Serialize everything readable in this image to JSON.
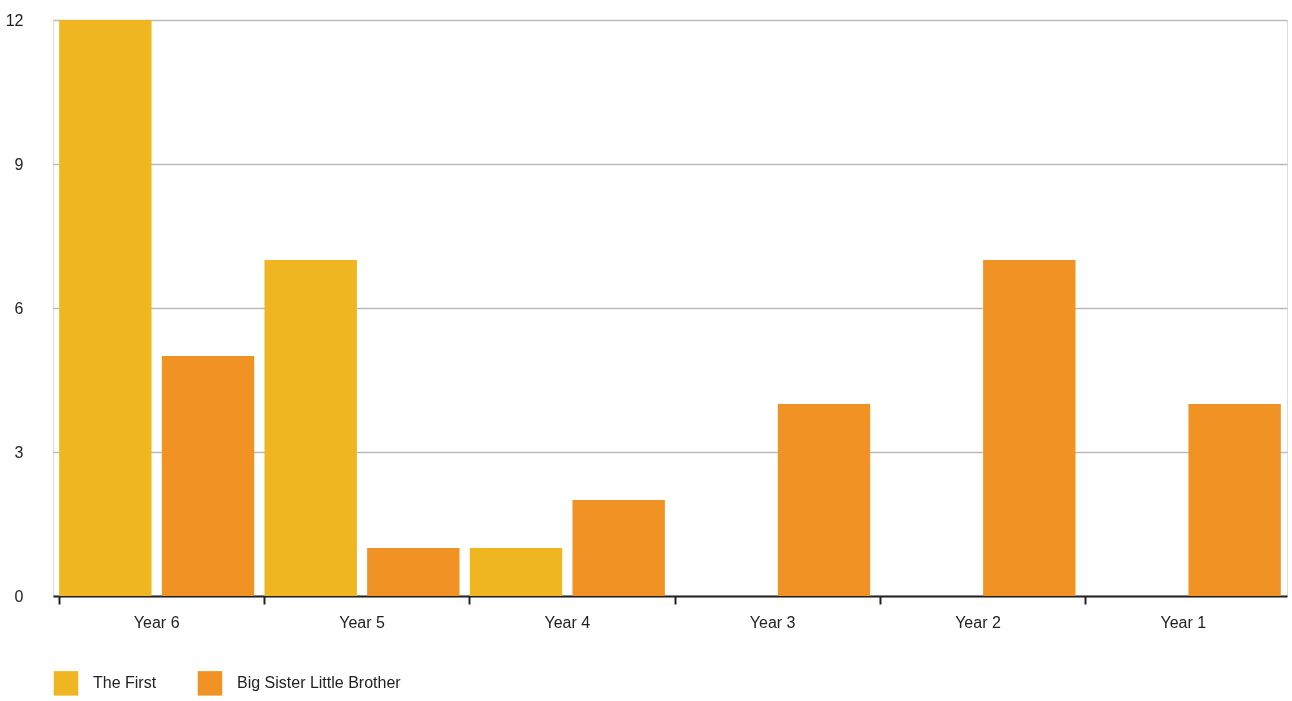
{
  "chart_data": {
    "type": "bar",
    "categories": [
      "Year 6",
      "Year 5",
      "Year 4",
      "Year 3",
      "Year 2",
      "Year 1"
    ],
    "series": [
      {
        "name": "The First",
        "color": "#f0b622",
        "values": [
          12,
          7,
          1,
          null,
          null,
          null
        ]
      },
      {
        "name": "Big Sister Little Brother",
        "color": "#f09324",
        "values": [
          5,
          1,
          2,
          4,
          7,
          4
        ]
      }
    ],
    "ylim": [
      0,
      12
    ],
    "yticks": [
      0,
      3,
      6,
      9,
      12
    ],
    "grid": "y",
    "legend": "bottom left"
  }
}
